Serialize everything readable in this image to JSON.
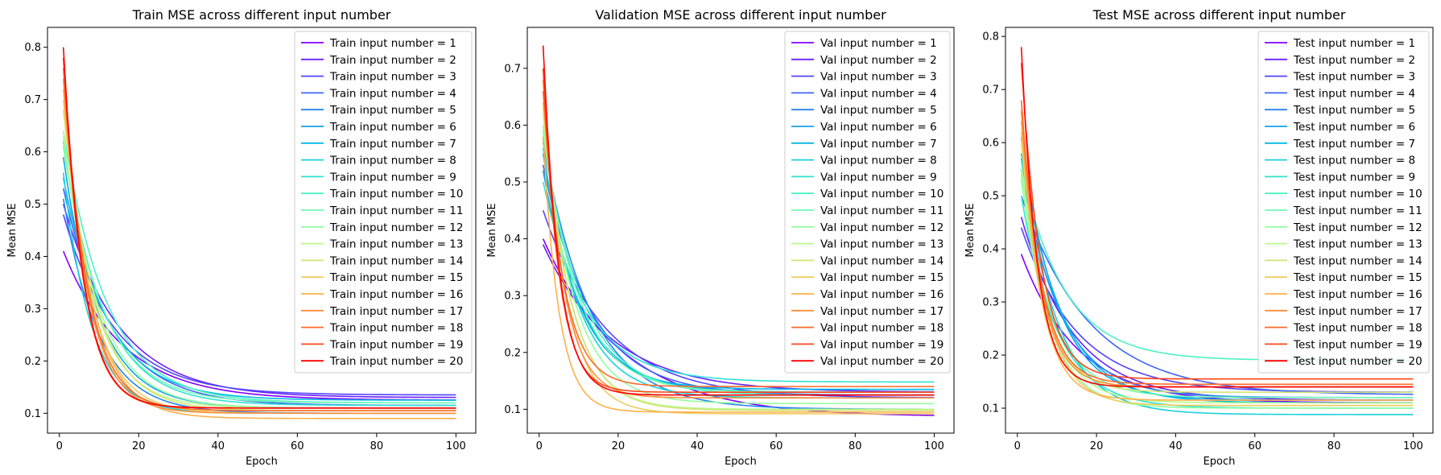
{
  "chart_data": [
    {
      "type": "line",
      "title": "Train MSE across different input number",
      "xlabel": "Epoch",
      "ylabel": "Mean MSE",
      "xlim": [
        -3,
        105
      ],
      "ylim": [
        0.062,
        0.838
      ],
      "xticks": [
        0,
        20,
        40,
        60,
        80,
        100
      ],
      "yticks": [
        0.1,
        0.2,
        0.3,
        0.4,
        0.5,
        0.6,
        0.7,
        0.8
      ],
      "legend_position": "top-right",
      "x": [
        1,
        100
      ],
      "series": [
        {
          "name": "Train input number = 1",
          "color": "#8000ff",
          "start": 0.41,
          "end": 0.125,
          "tau": 15
        },
        {
          "name": "Train input number = 2",
          "color": "#6a22fe",
          "start": 0.5,
          "end": 0.13,
          "tau": 14
        },
        {
          "name": "Train input number = 3",
          "color": "#5444fd",
          "start": 0.48,
          "end": 0.135,
          "tau": 13
        },
        {
          "name": "Train input number = 4",
          "color": "#3e64f9",
          "start": 0.53,
          "end": 0.115,
          "tau": 12
        },
        {
          "name": "Train input number = 5",
          "color": "#2884f3",
          "start": 0.51,
          "end": 0.1,
          "tau": 9
        },
        {
          "name": "Train input number = 6",
          "color": "#12a2ec",
          "start": 0.59,
          "end": 0.11,
          "tau": 9
        },
        {
          "name": "Train input number = 7",
          "color": "#04b9e5",
          "start": 0.55,
          "end": 0.125,
          "tau": 11
        },
        {
          "name": "Train input number = 8",
          "color": "#1ad1dc",
          "start": 0.56,
          "end": 0.1,
          "tau": 7
        },
        {
          "name": "Train input number = 9",
          "color": "#30e2d2",
          "start": 0.62,
          "end": 0.115,
          "tau": 10
        },
        {
          "name": "Train input number = 10",
          "color": "#4cf2c4",
          "start": 0.64,
          "end": 0.12,
          "tau": 11
        },
        {
          "name": "Train input number = 11",
          "color": "#70fab4",
          "start": 0.61,
          "end": 0.12,
          "tau": 10
        },
        {
          "name": "Train input number = 12",
          "color": "#94fe9f",
          "start": 0.63,
          "end": 0.11,
          "tau": 9
        },
        {
          "name": "Train input number = 13",
          "color": "#b8fa8a",
          "start": 0.64,
          "end": 0.11,
          "tau": 8
        },
        {
          "name": "Train input number = 14",
          "color": "#d4e475",
          "start": 0.68,
          "end": 0.105,
          "tau": 8
        },
        {
          "name": "Train input number = 15",
          "color": "#f0cc5e",
          "start": 0.7,
          "end": 0.1,
          "tau": 7
        },
        {
          "name": "Train input number = 16",
          "color": "#ffb04a",
          "start": 0.72,
          "end": 0.09,
          "tau": 7
        },
        {
          "name": "Train input number = 17",
          "color": "#ff8e39",
          "start": 0.74,
          "end": 0.1,
          "tau": 6
        },
        {
          "name": "Train input number = 18",
          "color": "#ff6a28",
          "start": 0.76,
          "end": 0.105,
          "tau": 6
        },
        {
          "name": "Train input number = 19",
          "color": "#ff4618",
          "start": 0.78,
          "end": 0.11,
          "tau": 5
        },
        {
          "name": "Train input number = 20",
          "color": "#ff0000",
          "start": 0.8,
          "end": 0.11,
          "tau": 5
        }
      ]
    },
    {
      "type": "line",
      "title": "Validation MSE across different input number",
      "xlabel": "Epoch",
      "ylabel": "Mean MSE",
      "xlim": [
        -3,
        105
      ],
      "ylim": [
        0.058,
        0.772
      ],
      "xticks": [
        0,
        20,
        40,
        60,
        80,
        100
      ],
      "yticks": [
        0.1,
        0.2,
        0.3,
        0.4,
        0.5,
        0.6,
        0.7
      ],
      "legend_position": "top-right",
      "x": [
        1,
        100
      ],
      "series": [
        {
          "name": "Val input number = 1",
          "color": "#8000ff",
          "start": 0.4,
          "end": 0.087,
          "tau": 20
        },
        {
          "name": "Val input number = 2",
          "color": "#6a22fe",
          "start": 0.39,
          "end": 0.13,
          "tau": 17
        },
        {
          "name": "Val input number = 3",
          "color": "#5444fd",
          "start": 0.45,
          "end": 0.12,
          "tau": 16
        },
        {
          "name": "Val input number = 4",
          "color": "#3e64f9",
          "start": 0.53,
          "end": 0.125,
          "tau": 12
        },
        {
          "name": "Val input number = 5",
          "color": "#2884f3",
          "start": 0.57,
          "end": 0.1,
          "tau": 12
        },
        {
          "name": "Val input number = 6",
          "color": "#12a2ec",
          "start": 0.52,
          "end": 0.13,
          "tau": 10
        },
        {
          "name": "Val input number = 7",
          "color": "#04b9e5",
          "start": 0.55,
          "end": 0.135,
          "tau": 9
        },
        {
          "name": "Val input number = 8",
          "color": "#1ad1dc",
          "start": 0.56,
          "end": 0.12,
          "tau": 9
        },
        {
          "name": "Val input number = 9",
          "color": "#30e2d2",
          "start": 0.5,
          "end": 0.148,
          "tau": 11
        },
        {
          "name": "Val input number = 10",
          "color": "#4cf2c4",
          "start": 0.58,
          "end": 0.125,
          "tau": 10
        },
        {
          "name": "Val input number = 11",
          "color": "#70fab4",
          "start": 0.59,
          "end": 0.13,
          "tau": 9
        },
        {
          "name": "Val input number = 12",
          "color": "#94fe9f",
          "start": 0.6,
          "end": 0.11,
          "tau": 8
        },
        {
          "name": "Val input number = 13",
          "color": "#b8fa8a",
          "start": 0.62,
          "end": 0.1,
          "tau": 7
        },
        {
          "name": "Val input number = 14",
          "color": "#d4e475",
          "start": 0.63,
          "end": 0.098,
          "tau": 7
        },
        {
          "name": "Val input number = 15",
          "color": "#f0cc5e",
          "start": 0.64,
          "end": 0.092,
          "tau": 6
        },
        {
          "name": "Val input number = 16",
          "color": "#ffb04a",
          "start": 0.58,
          "end": 0.095,
          "tau": 4
        },
        {
          "name": "Val input number = 17",
          "color": "#ff8e39",
          "start": 0.68,
          "end": 0.12,
          "tau": 5
        },
        {
          "name": "Val input number = 18",
          "color": "#ff6a28",
          "start": 0.66,
          "end": 0.14,
          "tau": 5
        },
        {
          "name": "Val input number = 19",
          "color": "#ff4618",
          "start": 0.7,
          "end": 0.13,
          "tau": 4
        },
        {
          "name": "Val input number = 20",
          "color": "#ff0000",
          "start": 0.74,
          "end": 0.125,
          "tau": 4
        }
      ]
    },
    {
      "type": "line",
      "title": "Test MSE across different input number",
      "xlabel": "Epoch",
      "ylabel": "Mean MSE",
      "xlim": [
        -3,
        105
      ],
      "ylim": [
        0.053,
        0.817
      ],
      "xticks": [
        0,
        20,
        40,
        60,
        80,
        100
      ],
      "yticks": [
        0.1,
        0.2,
        0.3,
        0.4,
        0.5,
        0.6,
        0.7,
        0.8
      ],
      "legend_position": "top-right",
      "x": [
        1,
        100
      ],
      "series": [
        {
          "name": "Test input number = 1",
          "color": "#8000ff",
          "start": 0.39,
          "end": 0.11,
          "tau": 14
        },
        {
          "name": "Test input number = 2",
          "color": "#6a22fe",
          "start": 0.46,
          "end": 0.115,
          "tau": 13
        },
        {
          "name": "Test input number = 3",
          "color": "#5444fd",
          "start": 0.44,
          "end": 0.13,
          "tau": 14
        },
        {
          "name": "Test input number = 4",
          "color": "#3e64f9",
          "start": 0.5,
          "end": 0.125,
          "tau": 17
        },
        {
          "name": "Test input number = 5",
          "color": "#2884f3",
          "start": 0.55,
          "end": 0.12,
          "tau": 10
        },
        {
          "name": "Test input number = 6",
          "color": "#12a2ec",
          "start": 0.61,
          "end": 0.115,
          "tau": 9
        },
        {
          "name": "Test input number = 7",
          "color": "#04b9e5",
          "start": 0.58,
          "end": 0.11,
          "tau": 10
        },
        {
          "name": "Test input number = 8",
          "color": "#1ad1dc",
          "start": 0.57,
          "end": 0.088,
          "tau": 9
        },
        {
          "name": "Test input number = 9",
          "color": "#30e2d2",
          "start": 0.5,
          "end": 0.1,
          "tau": 9
        },
        {
          "name": "Test input number = 10",
          "color": "#4cf2c4",
          "start": 0.55,
          "end": 0.19,
          "tau": 11
        },
        {
          "name": "Test input number = 11",
          "color": "#70fab4",
          "start": 0.53,
          "end": 0.12,
          "tau": 8
        },
        {
          "name": "Test input number = 12",
          "color": "#94fe9f",
          "start": 0.54,
          "end": 0.1,
          "tau": 7
        },
        {
          "name": "Test input number = 13",
          "color": "#b8fa8a",
          "start": 0.56,
          "end": 0.11,
          "tau": 7
        },
        {
          "name": "Test input number = 14",
          "color": "#d4e475",
          "start": 0.6,
          "end": 0.13,
          "tau": 6
        },
        {
          "name": "Test input number = 15",
          "color": "#f0cc5e",
          "start": 0.62,
          "end": 0.105,
          "tau": 6
        },
        {
          "name": "Test input number = 16",
          "color": "#ffb04a",
          "start": 0.64,
          "end": 0.115,
          "tau": 5
        },
        {
          "name": "Test input number = 17",
          "color": "#ff8e39",
          "start": 0.66,
          "end": 0.14,
          "tau": 5
        },
        {
          "name": "Test input number = 18",
          "color": "#ff6a28",
          "start": 0.68,
          "end": 0.145,
          "tau": 5
        },
        {
          "name": "Test input number = 19",
          "color": "#ff4618",
          "start": 0.75,
          "end": 0.155,
          "tau": 5
        },
        {
          "name": "Test input number = 20",
          "color": "#ff0000",
          "start": 0.78,
          "end": 0.14,
          "tau": 4
        }
      ]
    }
  ]
}
